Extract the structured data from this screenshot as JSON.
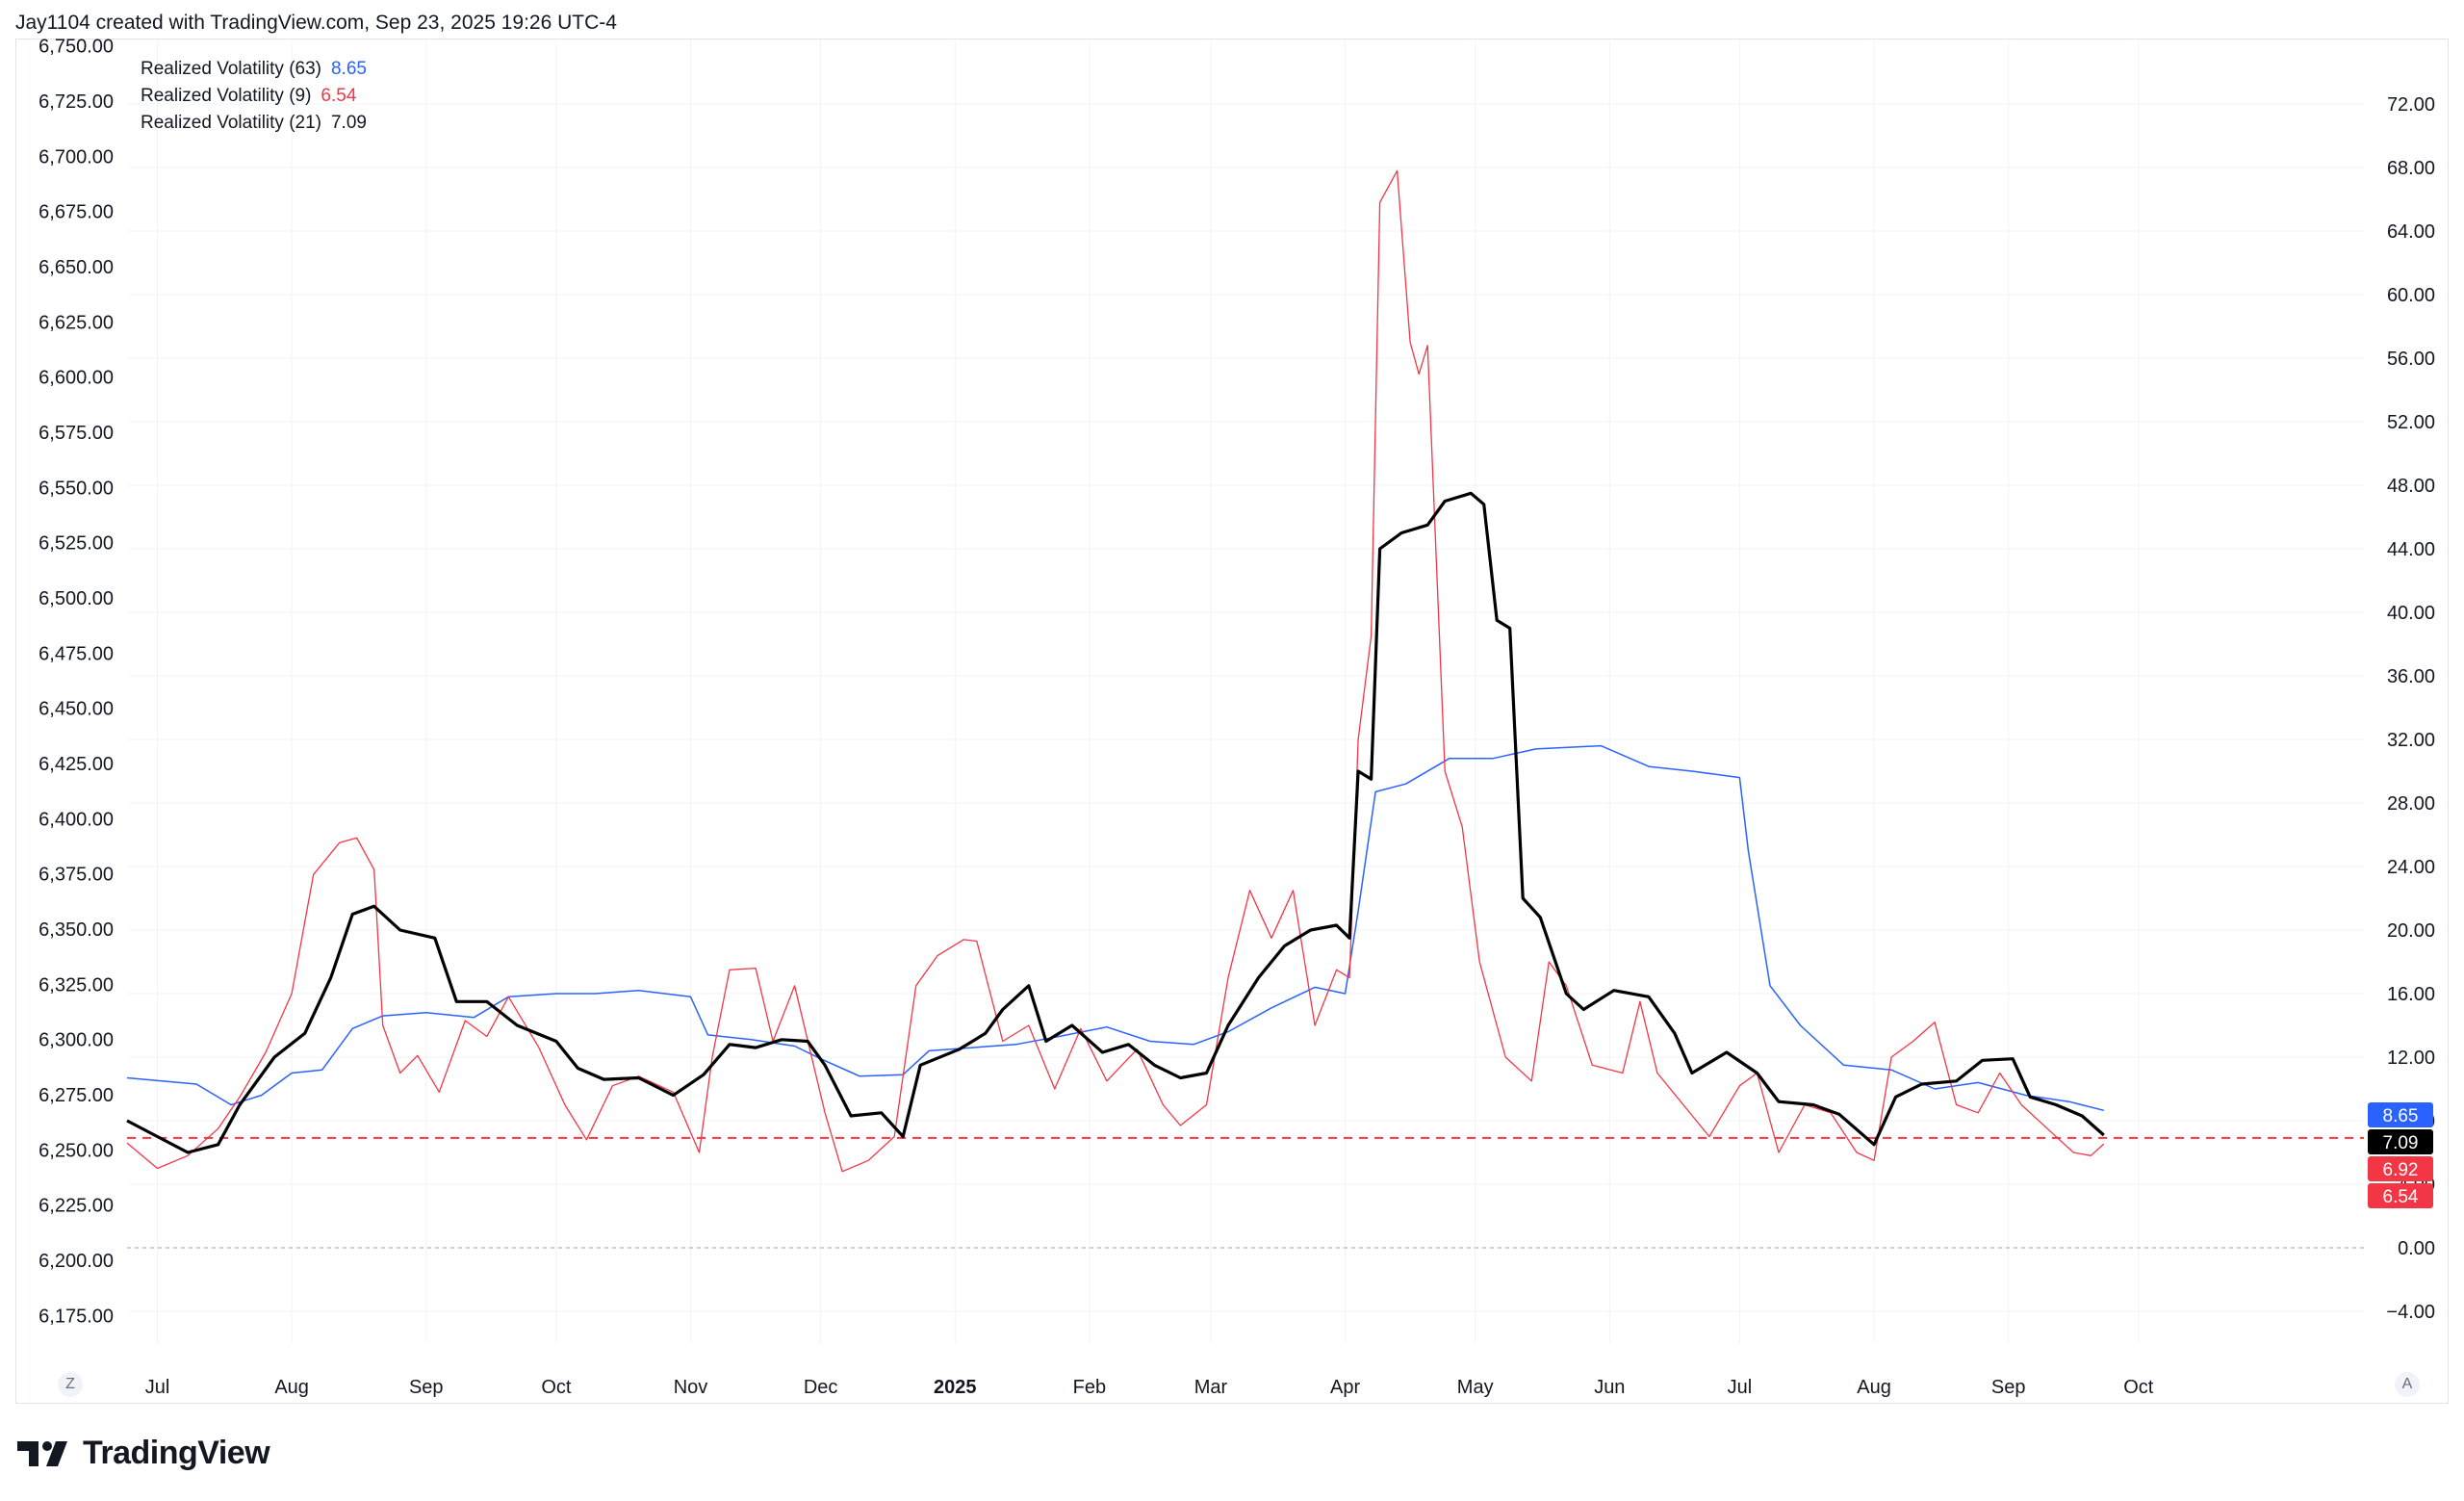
{
  "header": {
    "credit": "Jay1104 created with TradingView.com, Sep 23, 2025 19:26 UTC-4"
  },
  "legend": [
    {
      "label": "Realized Volatility (63)",
      "value": "8.65",
      "color": "#2962ff"
    },
    {
      "label": "Realized Volatility (9)",
      "value": "6.54",
      "color": "#f23645"
    },
    {
      "label": "Realized Volatility (21)",
      "value": "7.09",
      "color": "#000000"
    }
  ],
  "footer": {
    "brand": "TradingView",
    "brand_icon": "tradingview-logo-icon",
    "left_button": "Z",
    "right_button": "A"
  },
  "chart_data": {
    "type": "line",
    "x_axis": {
      "ticks": [
        {
          "label": "Jul",
          "date": "2024-07-01"
        },
        {
          "label": "Aug",
          "date": "2024-08-01"
        },
        {
          "label": "Sep",
          "date": "2024-09-01"
        },
        {
          "label": "Oct",
          "date": "2024-10-01"
        },
        {
          "label": "Nov",
          "date": "2024-11-01"
        },
        {
          "label": "Dec",
          "date": "2024-12-01"
        },
        {
          "label": "2025",
          "date": "2025-01-01",
          "bold": true
        },
        {
          "label": "Feb",
          "date": "2025-02-01"
        },
        {
          "label": "Mar",
          "date": "2025-03-01"
        },
        {
          "label": "Apr",
          "date": "2025-04-01"
        },
        {
          "label": "May",
          "date": "2025-05-01"
        },
        {
          "label": "Jun",
          "date": "2025-06-01"
        },
        {
          "label": "Jul",
          "date": "2025-07-01"
        },
        {
          "label": "Aug",
          "date": "2025-08-01"
        },
        {
          "label": "Sep",
          "date": "2025-09-01"
        },
        {
          "label": "Oct",
          "date": "2025-10-01"
        }
      ],
      "range": [
        "2024-06-24",
        "2025-11-22"
      ]
    },
    "left_axis": {
      "ylim": [
        6162.5,
        6752.5
      ],
      "ticks": [
        "6,175.00",
        "6,200.00",
        "6,225.00",
        "6,250.00",
        "6,275.00",
        "6,300.00",
        "6,325.00",
        "6,350.00",
        "6,375.00",
        "6,400.00",
        "6,425.00",
        "6,450.00",
        "6,475.00",
        "6,500.00",
        "6,525.00",
        "6,550.00",
        "6,575.00",
        "6,600.00",
        "6,625.00",
        "6,650.00",
        "6,675.00",
        "6,700.00",
        "6,725.00",
        "6,750.00"
      ]
    },
    "right_axis": {
      "ylim": [
        -6,
        76
      ],
      "ticks": [
        "−4.00",
        "0.00",
        "4.00",
        "8.00",
        "12.00",
        "16.00",
        "20.00",
        "24.00",
        "28.00",
        "32.00",
        "36.00",
        "40.00",
        "44.00",
        "48.00",
        "52.00",
        "56.00",
        "60.00",
        "64.00",
        "68.00",
        "72.00"
      ]
    },
    "zero_line": 0,
    "reference_line": {
      "value": 6.92,
      "color": "#f23645",
      "style": "dashed"
    },
    "last_value_badges": [
      {
        "value": "8.65",
        "color": "#2962ff"
      },
      {
        "value": "7.09",
        "color": "#000000"
      },
      {
        "value": "6.92",
        "color": "#f23645"
      },
      {
        "value": "6.54",
        "color": "#f23645"
      }
    ],
    "series": [
      {
        "name": "Realized Volatility (63)",
        "color": "#2962ff",
        "width": 1.5,
        "points": [
          [
            "2024-06-24",
            10.7
          ],
          [
            "2024-07-10",
            10.3
          ],
          [
            "2024-07-18",
            9.0
          ],
          [
            "2024-07-25",
            9.6
          ],
          [
            "2024-08-01",
            11.0
          ],
          [
            "2024-08-08",
            11.2
          ],
          [
            "2024-08-15",
            13.8
          ],
          [
            "2024-08-22",
            14.6
          ],
          [
            "2024-09-01",
            14.8
          ],
          [
            "2024-09-12",
            14.5
          ],
          [
            "2024-09-20",
            15.8
          ],
          [
            "2024-10-01",
            16.0
          ],
          [
            "2024-10-10",
            16.0
          ],
          [
            "2024-10-20",
            16.2
          ],
          [
            "2024-11-01",
            15.8
          ],
          [
            "2024-11-05",
            13.4
          ],
          [
            "2024-11-15",
            13.1
          ],
          [
            "2024-11-25",
            12.7
          ],
          [
            "2024-12-01",
            11.9
          ],
          [
            "2024-12-10",
            10.8
          ],
          [
            "2024-12-20",
            10.9
          ],
          [
            "2024-12-26",
            12.4
          ],
          [
            "2025-01-05",
            12.6
          ],
          [
            "2025-01-15",
            12.8
          ],
          [
            "2025-01-25",
            13.3
          ],
          [
            "2025-02-05",
            13.9
          ],
          [
            "2025-02-15",
            13.0
          ],
          [
            "2025-02-25",
            12.8
          ],
          [
            "2025-03-05",
            13.6
          ],
          [
            "2025-03-15",
            15.1
          ],
          [
            "2025-03-25",
            16.4
          ],
          [
            "2025-04-01",
            16.0
          ],
          [
            "2025-04-04",
            21.2
          ],
          [
            "2025-04-08",
            28.7
          ],
          [
            "2025-04-15",
            29.2
          ],
          [
            "2025-04-25",
            30.8
          ],
          [
            "2025-05-05",
            30.8
          ],
          [
            "2025-05-15",
            31.4
          ],
          [
            "2025-05-30",
            31.6
          ],
          [
            "2025-06-10",
            30.3
          ],
          [
            "2025-06-20",
            30.0
          ],
          [
            "2025-07-01",
            29.6
          ],
          [
            "2025-07-03",
            25.0
          ],
          [
            "2025-07-08",
            16.5
          ],
          [
            "2025-07-15",
            14.0
          ],
          [
            "2025-07-25",
            11.5
          ],
          [
            "2025-08-05",
            11.2
          ],
          [
            "2025-08-15",
            10.0
          ],
          [
            "2025-08-25",
            10.4
          ],
          [
            "2025-09-05",
            9.6
          ],
          [
            "2025-09-15",
            9.2
          ],
          [
            "2025-09-23",
            8.65
          ]
        ]
      },
      {
        "name": "Realized Volatility (9)",
        "color": "#f23645",
        "width": 1.3,
        "points": [
          [
            "2024-06-24",
            6.6
          ],
          [
            "2024-07-01",
            5.0
          ],
          [
            "2024-07-08",
            5.8
          ],
          [
            "2024-07-15",
            7.5
          ],
          [
            "2024-07-20",
            9.5
          ],
          [
            "2024-07-26",
            12.3
          ],
          [
            "2024-08-01",
            16.0
          ],
          [
            "2024-08-06",
            23.5
          ],
          [
            "2024-08-12",
            25.5
          ],
          [
            "2024-08-16",
            25.8
          ],
          [
            "2024-08-20",
            23.8
          ],
          [
            "2024-08-22",
            14.0
          ],
          [
            "2024-08-26",
            11.0
          ],
          [
            "2024-08-30",
            12.1
          ],
          [
            "2024-09-04",
            9.8
          ],
          [
            "2024-09-10",
            14.3
          ],
          [
            "2024-09-15",
            13.3
          ],
          [
            "2024-09-20",
            15.8
          ],
          [
            "2024-09-27",
            12.6
          ],
          [
            "2024-10-03",
            9.0
          ],
          [
            "2024-10-08",
            6.8
          ],
          [
            "2024-10-14",
            10.2
          ],
          [
            "2024-10-20",
            10.8
          ],
          [
            "2024-10-28",
            9.8
          ],
          [
            "2024-11-03",
            6.0
          ],
          [
            "2024-11-06",
            12.0
          ],
          [
            "2024-11-10",
            17.5
          ],
          [
            "2024-11-16",
            17.6
          ],
          [
            "2024-11-20",
            13.0
          ],
          [
            "2024-11-25",
            16.5
          ],
          [
            "2024-12-02",
            8.5
          ],
          [
            "2024-12-06",
            4.8
          ],
          [
            "2024-12-12",
            5.5
          ],
          [
            "2024-12-18",
            7.0
          ],
          [
            "2024-12-23",
            16.5
          ],
          [
            "2024-12-28",
            18.4
          ],
          [
            "2025-01-03",
            19.4
          ],
          [
            "2025-01-06",
            19.3
          ],
          [
            "2025-01-12",
            13.0
          ],
          [
            "2025-01-18",
            14.0
          ],
          [
            "2025-01-24",
            10.0
          ],
          [
            "2025-01-30",
            13.8
          ],
          [
            "2025-02-05",
            10.5
          ],
          [
            "2025-02-12",
            12.5
          ],
          [
            "2025-02-18",
            9.0
          ],
          [
            "2025-02-22",
            7.7
          ],
          [
            "2025-02-28",
            9.0
          ],
          [
            "2025-03-05",
            17.0
          ],
          [
            "2025-03-10",
            22.5
          ],
          [
            "2025-03-15",
            19.5
          ],
          [
            "2025-03-20",
            22.5
          ],
          [
            "2025-03-25",
            14.0
          ],
          [
            "2025-03-30",
            17.5
          ],
          [
            "2025-04-02",
            17.0
          ],
          [
            "2025-04-04",
            32.0
          ],
          [
            "2025-04-07",
            38.5
          ],
          [
            "2025-04-09",
            65.8
          ],
          [
            "2025-04-13",
            67.8
          ],
          [
            "2025-04-16",
            57.0
          ],
          [
            "2025-04-18",
            55.0
          ],
          [
            "2025-04-20",
            56.8
          ],
          [
            "2025-04-24",
            30.0
          ],
          [
            "2025-04-28",
            26.5
          ],
          [
            "2025-05-02",
            18.0
          ],
          [
            "2025-05-08",
            12.0
          ],
          [
            "2025-05-14",
            10.5
          ],
          [
            "2025-05-18",
            18.0
          ],
          [
            "2025-05-22",
            16.5
          ],
          [
            "2025-05-28",
            11.5
          ],
          [
            "2025-06-04",
            11.0
          ],
          [
            "2025-06-08",
            15.5
          ],
          [
            "2025-06-12",
            11.0
          ],
          [
            "2025-06-18",
            9.0
          ],
          [
            "2025-06-24",
            7.0
          ],
          [
            "2025-07-01",
            10.2
          ],
          [
            "2025-07-05",
            11.0
          ],
          [
            "2025-07-10",
            6.0
          ],
          [
            "2025-07-16",
            9.0
          ],
          [
            "2025-07-22",
            8.5
          ],
          [
            "2025-07-28",
            6.0
          ],
          [
            "2025-08-01",
            5.5
          ],
          [
            "2025-08-05",
            12.0
          ],
          [
            "2025-08-10",
            13.0
          ],
          [
            "2025-08-15",
            14.2
          ],
          [
            "2025-08-20",
            9.0
          ],
          [
            "2025-08-25",
            8.5
          ],
          [
            "2025-08-30",
            11.0
          ],
          [
            "2025-09-04",
            9.0
          ],
          [
            "2025-09-10",
            7.5
          ],
          [
            "2025-09-16",
            6.0
          ],
          [
            "2025-09-20",
            5.8
          ],
          [
            "2025-09-23",
            6.54
          ]
        ]
      },
      {
        "name": "Realized Volatility (21)",
        "color": "#000000",
        "width": 3.2,
        "points": [
          [
            "2024-06-24",
            8.0
          ],
          [
            "2024-07-01",
            7.0
          ],
          [
            "2024-07-08",
            6.0
          ],
          [
            "2024-07-15",
            6.5
          ],
          [
            "2024-07-20",
            9.0
          ],
          [
            "2024-07-28",
            12.0
          ],
          [
            "2024-08-04",
            13.5
          ],
          [
            "2024-08-10",
            17.0
          ],
          [
            "2024-08-15",
            21.0
          ],
          [
            "2024-08-20",
            21.5
          ],
          [
            "2024-08-26",
            20.0
          ],
          [
            "2024-09-03",
            19.5
          ],
          [
            "2024-09-08",
            15.5
          ],
          [
            "2024-09-15",
            15.5
          ],
          [
            "2024-09-22",
            14.0
          ],
          [
            "2024-10-01",
            13.0
          ],
          [
            "2024-10-06",
            11.3
          ],
          [
            "2024-10-12",
            10.6
          ],
          [
            "2024-10-20",
            10.7
          ],
          [
            "2024-10-28",
            9.6
          ],
          [
            "2024-11-04",
            10.9
          ],
          [
            "2024-11-10",
            12.8
          ],
          [
            "2024-11-16",
            12.6
          ],
          [
            "2024-11-22",
            13.1
          ],
          [
            "2024-11-28",
            13.0
          ],
          [
            "2024-12-02",
            11.5
          ],
          [
            "2024-12-08",
            8.3
          ],
          [
            "2024-12-15",
            8.5
          ],
          [
            "2024-12-20",
            7.0
          ],
          [
            "2024-12-24",
            11.5
          ],
          [
            "2025-01-02",
            12.5
          ],
          [
            "2025-01-08",
            13.5
          ],
          [
            "2025-01-12",
            15.0
          ],
          [
            "2025-01-18",
            16.5
          ],
          [
            "2025-01-22",
            13.0
          ],
          [
            "2025-01-28",
            14.0
          ],
          [
            "2025-02-04",
            12.3
          ],
          [
            "2025-02-10",
            12.8
          ],
          [
            "2025-02-16",
            11.5
          ],
          [
            "2025-02-22",
            10.7
          ],
          [
            "2025-02-28",
            11.0
          ],
          [
            "2025-03-05",
            14.0
          ],
          [
            "2025-03-12",
            17.0
          ],
          [
            "2025-03-18",
            19.0
          ],
          [
            "2025-03-24",
            20.0
          ],
          [
            "2025-03-30",
            20.3
          ],
          [
            "2025-04-02",
            19.5
          ],
          [
            "2025-04-04",
            30.0
          ],
          [
            "2025-04-07",
            29.5
          ],
          [
            "2025-04-09",
            44.0
          ],
          [
            "2025-04-14",
            45.0
          ],
          [
            "2025-04-20",
            45.5
          ],
          [
            "2025-04-24",
            47.0
          ],
          [
            "2025-04-30",
            47.5
          ],
          [
            "2025-05-03",
            46.8
          ],
          [
            "2025-05-06",
            39.5
          ],
          [
            "2025-05-09",
            39.0
          ],
          [
            "2025-05-12",
            22.0
          ],
          [
            "2025-05-16",
            20.8
          ],
          [
            "2025-05-22",
            16.0
          ],
          [
            "2025-05-26",
            15.0
          ],
          [
            "2025-06-02",
            16.2
          ],
          [
            "2025-06-10",
            15.8
          ],
          [
            "2025-06-16",
            13.5
          ],
          [
            "2025-06-20",
            11.0
          ],
          [
            "2025-06-28",
            12.3
          ],
          [
            "2025-07-05",
            11.0
          ],
          [
            "2025-07-10",
            9.2
          ],
          [
            "2025-07-18",
            9.0
          ],
          [
            "2025-07-24",
            8.4
          ],
          [
            "2025-08-01",
            6.5
          ],
          [
            "2025-08-06",
            9.5
          ],
          [
            "2025-08-12",
            10.3
          ],
          [
            "2025-08-20",
            10.5
          ],
          [
            "2025-08-26",
            11.8
          ],
          [
            "2025-09-02",
            11.9
          ],
          [
            "2025-09-06",
            9.5
          ],
          [
            "2025-09-12",
            9.0
          ],
          [
            "2025-09-18",
            8.3
          ],
          [
            "2025-09-23",
            7.09
          ]
        ]
      }
    ]
  }
}
